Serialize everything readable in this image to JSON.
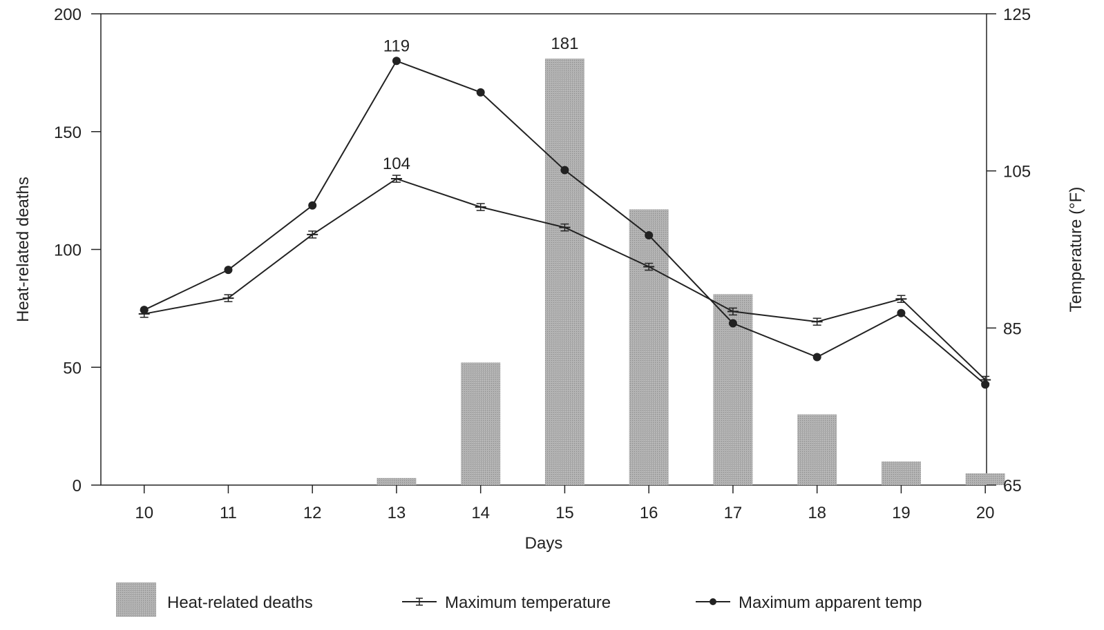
{
  "chart_data": {
    "type": "bar",
    "xlabel": "Days",
    "ylabel": "Heat-related deaths",
    "y2label": "Temperature (°F)",
    "categories": [
      "10",
      "11",
      "12",
      "13",
      "14",
      "15",
      "16",
      "17",
      "18",
      "19",
      "20"
    ],
    "ylim": [
      0,
      200
    ],
    "yticks": [
      0,
      50,
      100,
      150,
      200
    ],
    "y2lim": [
      65,
      125
    ],
    "y2ticks": [
      65,
      85,
      105,
      125
    ],
    "grid": false,
    "legend_position": "bottom",
    "series": [
      {
        "name": "Heat-related deaths",
        "kind": "bar",
        "axis": "left",
        "color": "#a8a8a8",
        "values": [
          0,
          0,
          0,
          3,
          52,
          181,
          117,
          81,
          30,
          10,
          5
        ]
      },
      {
        "name": "Maximum temperature",
        "kind": "line",
        "marker": "errorbar",
        "axis": "right",
        "color": "#222222",
        "values": [
          86.8,
          88.8,
          96.9,
          104,
          100.4,
          97.8,
          92.8,
          87.1,
          85.8,
          88.7,
          78.4
        ]
      },
      {
        "name": "Maximum apparent temp",
        "kind": "line",
        "marker": "dot",
        "axis": "right",
        "color": "#222222",
        "values": [
          87.3,
          92.4,
          100.6,
          119,
          115,
          105.1,
          96.8,
          85.6,
          81.3,
          86.9,
          77.8
        ]
      }
    ],
    "annotations": [
      {
        "series": "Maximum apparent temp",
        "category": "13",
        "text": "119"
      },
      {
        "series": "Heat-related deaths",
        "category": "15",
        "text": "181"
      },
      {
        "series": "Maximum temperature",
        "category": "13",
        "text": "104"
      }
    ]
  }
}
